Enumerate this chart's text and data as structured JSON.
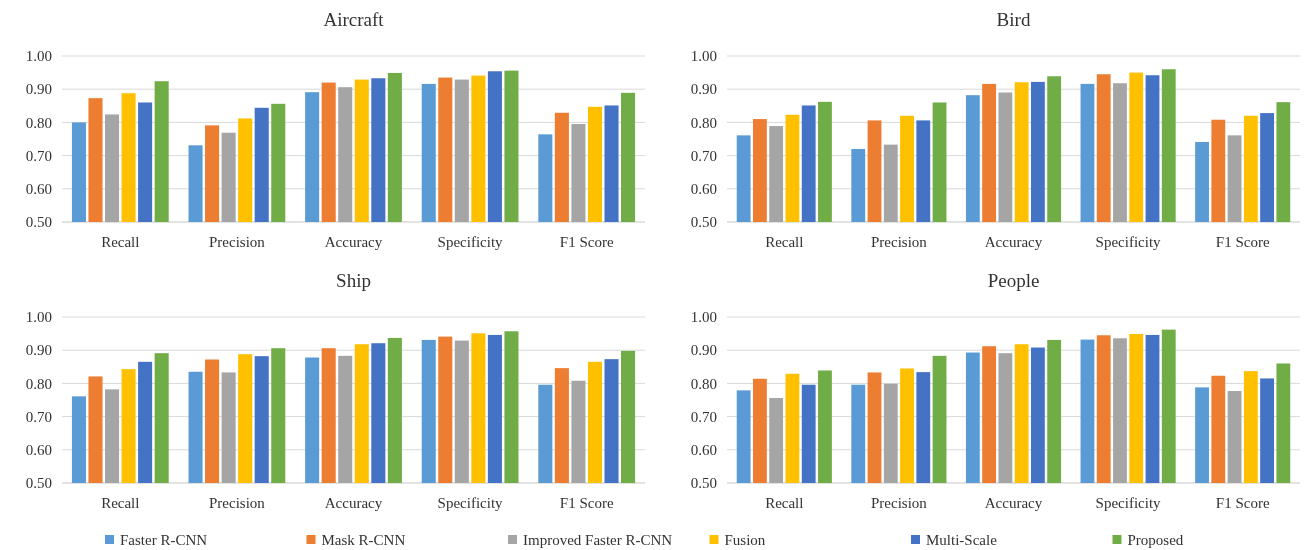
{
  "chart_data": [
    {
      "type": "bar",
      "title": "Aircraft",
      "categories": [
        "Recall",
        "Precision",
        "Accuracy",
        "Specificity",
        "F1 Score"
      ],
      "series": [
        {
          "name": "Faster R-CNN",
          "color": "#5b9bd5",
          "values": [
            0.8,
            0.731,
            0.891,
            0.916,
            0.764
          ]
        },
        {
          "name": "Mask R-CNN",
          "color": "#ed7d31",
          "values": [
            0.873,
            0.791,
            0.92,
            0.935,
            0.829
          ]
        },
        {
          "name": "Improved Faster R-CNN",
          "color": "#a5a5a5",
          "values": [
            0.824,
            0.769,
            0.906,
            0.929,
            0.795
          ]
        },
        {
          "name": "Fusion",
          "color": "#ffc000",
          "values": [
            0.888,
            0.812,
            0.929,
            0.941,
            0.847
          ]
        },
        {
          "name": "Multi-Scale",
          "color": "#4472c4",
          "values": [
            0.86,
            0.844,
            0.933,
            0.954,
            0.851
          ]
        },
        {
          "name": "Proposed",
          "color": "#70ad47",
          "values": [
            0.924,
            0.856,
            0.949,
            0.956,
            0.889
          ]
        }
      ],
      "ylim": [
        0.5,
        1.0
      ],
      "yticks": [
        {
          "value": 0.5,
          "label": "0.50"
        },
        {
          "value": 0.6,
          "label": "0.60"
        },
        {
          "value": 0.7,
          "label": "0.70"
        },
        {
          "value": 0.8,
          "label": "0.80"
        },
        {
          "value": 0.9,
          "label": "0.90"
        },
        {
          "value": 1.0,
          "label": "1.00"
        }
      ],
      "grid": "y",
      "legend": "bottom"
    },
    {
      "type": "bar",
      "title": "Bird",
      "categories": [
        "Recall",
        "Precision",
        "Accuracy",
        "Specificity",
        "F1 Score"
      ],
      "series": [
        {
          "color": "#5b9bd5",
          "values": [
            0.761,
            0.72,
            0.882,
            0.916,
            0.741
          ]
        },
        {
          "color": "#ed7d31",
          "values": [
            0.81,
            0.806,
            0.916,
            0.945,
            0.808
          ]
        },
        {
          "color": "#a5a5a5",
          "values": [
            0.789,
            0.733,
            0.89,
            0.918,
            0.761
          ]
        },
        {
          "color": "#ffc000",
          "values": [
            0.823,
            0.82,
            0.921,
            0.95,
            0.82
          ]
        },
        {
          "color": "#4472c4",
          "values": [
            0.851,
            0.806,
            0.922,
            0.942,
            0.828
          ]
        },
        {
          "color": "#70ad47",
          "values": [
            0.862,
            0.86,
            0.939,
            0.96,
            0.861
          ]
        }
      ],
      "ylim": [
        0.5,
        1.0
      ],
      "yticks": [
        {
          "value": 0.5,
          "label": "0.50"
        },
        {
          "value": 0.6,
          "label": "0.60"
        },
        {
          "value": 0.7,
          "label": "0.70"
        },
        {
          "value": 0.8,
          "label": "0.80"
        },
        {
          "value": 0.9,
          "label": "0.90"
        },
        {
          "value": 1.0,
          "label": "1.00"
        }
      ],
      "grid": "y"
    },
    {
      "type": "bar",
      "title": "Ship",
      "categories": [
        "Recall",
        "Precision",
        "Accuracy",
        "Specificity",
        "F1 Score"
      ],
      "series": [
        {
          "color": "#5b9bd5",
          "values": [
            0.761,
            0.835,
            0.878,
            0.931,
            0.796
          ]
        },
        {
          "color": "#ed7d31",
          "values": [
            0.821,
            0.872,
            0.906,
            0.941,
            0.846
          ]
        },
        {
          "color": "#a5a5a5",
          "values": [
            0.782,
            0.833,
            0.883,
            0.929,
            0.808
          ]
        },
        {
          "color": "#ffc000",
          "values": [
            0.843,
            0.888,
            0.918,
            0.951,
            0.865
          ]
        },
        {
          "color": "#4472c4",
          "values": [
            0.865,
            0.882,
            0.921,
            0.946,
            0.873
          ]
        },
        {
          "color": "#70ad47",
          "values": [
            0.891,
            0.906,
            0.937,
            0.957,
            0.898
          ]
        }
      ],
      "ylim": [
        0.5,
        1.0
      ],
      "yticks": [
        {
          "value": 0.5,
          "label": "0.50"
        },
        {
          "value": 0.6,
          "label": "0.60"
        },
        {
          "value": 0.7,
          "label": "0.70"
        },
        {
          "value": 0.8,
          "label": "0.80"
        },
        {
          "value": 0.9,
          "label": "0.90"
        },
        {
          "value": 1.0,
          "label": "1.00"
        }
      ],
      "grid": "y"
    },
    {
      "type": "bar",
      "title": "People",
      "categories": [
        "Recall",
        "Precision",
        "Accuracy",
        "Specificity",
        "F1 Score"
      ],
      "series": [
        {
          "color": "#5b9bd5",
          "values": [
            0.779,
            0.796,
            0.893,
            0.932,
            0.788
          ]
        },
        {
          "color": "#ed7d31",
          "values": [
            0.814,
            0.833,
            0.912,
            0.945,
            0.823
          ]
        },
        {
          "color": "#a5a5a5",
          "values": [
            0.756,
            0.799,
            0.891,
            0.936,
            0.777
          ]
        },
        {
          "color": "#ffc000",
          "values": [
            0.829,
            0.845,
            0.918,
            0.949,
            0.837
          ]
        },
        {
          "color": "#4472c4",
          "values": [
            0.796,
            0.834,
            0.908,
            0.946,
            0.815
          ]
        },
        {
          "color": "#70ad47",
          "values": [
            0.839,
            0.883,
            0.931,
            0.962,
            0.86
          ]
        }
      ],
      "ylim": [
        0.5,
        1.0
      ],
      "yticks": [
        {
          "value": 0.5,
          "label": "0.50"
        },
        {
          "value": 0.6,
          "label": "0.60"
        },
        {
          "value": 0.7,
          "label": "0.70"
        },
        {
          "value": 0.8,
          "label": "0.80"
        },
        {
          "value": 0.9,
          "label": "0.90"
        },
        {
          "value": 1.0,
          "label": "1.00"
        }
      ],
      "grid": "y"
    }
  ]
}
